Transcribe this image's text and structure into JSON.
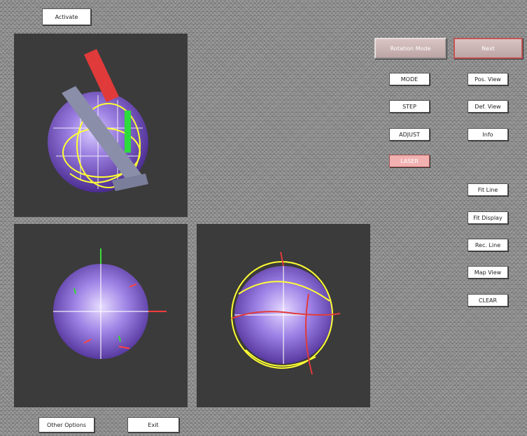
{
  "top_button": "Activate",
  "mode_buttons": {
    "left": "Rotation Mode",
    "right": "Next"
  },
  "left_column_buttons": [
    "MODE",
    "STEP",
    "ADJUST",
    "LASER"
  ],
  "right_column_buttons": [
    "Pos. View",
    "Def. View",
    "Info",
    "Fit Line",
    "Fit Display",
    "Rec. Line",
    "Map View",
    "CLEAR"
  ],
  "bottom_buttons": {
    "left": "Other Options",
    "right": "Exit"
  },
  "colors": {
    "background": "#8f8f8f",
    "viewport": "#3b3b3b",
    "sphere": "#8a6fd0",
    "accent_pink": "#f2b0b0"
  }
}
